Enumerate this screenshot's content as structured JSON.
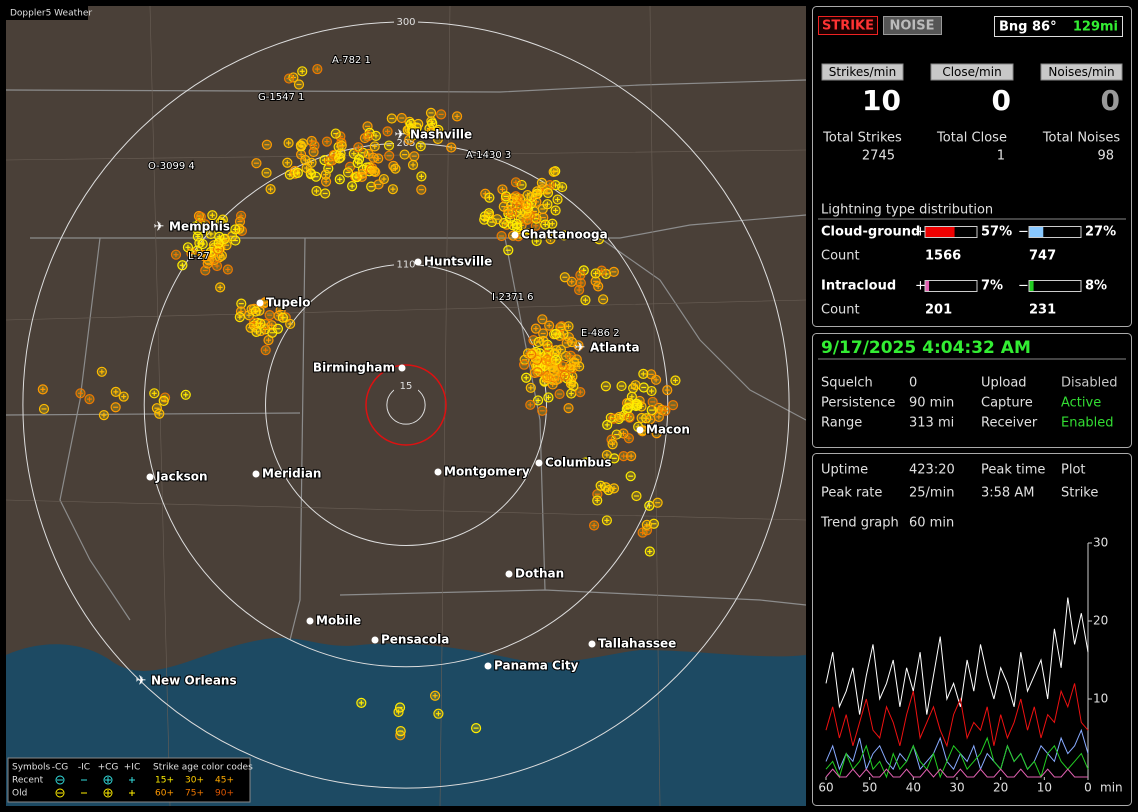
{
  "app_title": "Doppler5 Weather",
  "map": {
    "rings": [
      15,
      110,
      205,
      300
    ],
    "cities": [
      "Nashville",
      "Memphis",
      "Chattanooga",
      "Huntsville",
      "Tupelo",
      "Birmingham",
      "Atlanta",
      "Macon",
      "Jackson",
      "Meridian",
      "Montgomery",
      "Columbus",
      "Dothan",
      "Mobile",
      "Pensacola",
      "Panama City",
      "Tallahassee",
      "New Orleans"
    ],
    "cell_labels": [
      "A-782 1",
      "G-1547 1",
      "O-3099 4",
      "L-27",
      "A-1430 3",
      "I-2371 6",
      "E-486 2"
    ],
    "legend": {
      "symbols_label": "Symbols",
      "columns": [
        "-CG",
        "-IC",
        "+CG",
        "+IC"
      ],
      "age_title": "Strike age color codes",
      "rows": [
        {
          "name": "Recent",
          "ages": [
            "15+",
            "30+",
            "45+"
          ]
        },
        {
          "name": "Old",
          "ages": [
            "60+",
            "75+",
            "90+"
          ]
        }
      ]
    }
  },
  "status": {
    "buttons": [
      "STRIKE",
      "NOISE"
    ],
    "bearing": "Bng 86°",
    "distance": "129mi"
  },
  "rates": [
    {
      "label": "Strikes/min",
      "value": 10,
      "total_label": "Total Strikes",
      "total": 2745
    },
    {
      "label": "Close/min",
      "value": 0,
      "total_label": "Total Close",
      "total": 1
    },
    {
      "label": "Noises/min",
      "value": 0,
      "total_label": "Total Noises",
      "total": 98
    }
  ],
  "distribution": {
    "title": "Lightning type distribution",
    "count_label": "Count",
    "positive_sign": "+",
    "negative_sign": "−",
    "types": [
      {
        "name": "Cloud-ground",
        "positive": {
          "value": 57,
          "label": "57%"
        },
        "negative": {
          "value": 27,
          "label": "27%"
        },
        "positive_count": 1566,
        "negative_count": 747,
        "positive_color": "#ee0000",
        "negative_color": "#88c8ff"
      },
      {
        "name": "Intracloud",
        "positive": {
          "value": 7,
          "label": "7%"
        },
        "negative": {
          "value": 8,
          "label": "8%"
        },
        "positive_count": 201,
        "negative_count": 231,
        "positive_color": "#e060b0",
        "negative_color": "#22cc22"
      }
    ]
  },
  "clock": "9/17/2025 4:04:32 AM",
  "settings": [
    {
      "label": "Squelch",
      "value": 0,
      "label2": "Upload",
      "value2": "Disabled",
      "color2": "#c8c8c8"
    },
    {
      "label": "Persistence",
      "value": "90 min",
      "label2": "Capture",
      "value2": "Active",
      "color2": "#33dd33"
    },
    {
      "label": "Range",
      "value": "313 mi",
      "label2": "Receiver",
      "value2": "Enabled",
      "color2": "#33dd33"
    }
  ],
  "stats": [
    {
      "label": "Uptime",
      "value": "423:20"
    },
    {
      "label": "Peak rate",
      "value": "25/min"
    },
    {
      "label": "Peak time",
      "value": "3:58 AM"
    },
    {
      "label": "Plot",
      "value": "Strike"
    },
    {
      "label": "Trend graph",
      "value": "60 min"
    }
  ],
  "trend_graph": {
    "ylim": [
      0,
      30
    ],
    "yticks": [
      10,
      20,
      30
    ],
    "xlim": [
      60,
      0
    ],
    "xticks": [
      60,
      50,
      40,
      30,
      20,
      10,
      0
    ],
    "x_unit": "min",
    "series": [
      {
        "color": "#ffffff",
        "values": [
          12,
          16,
          9,
          11,
          14,
          8,
          13,
          17,
          10,
          12,
          15,
          9,
          14,
          11,
          16,
          8,
          13,
          18,
          10,
          12,
          9,
          15,
          11,
          17,
          13,
          10,
          14,
          12,
          9,
          16,
          11,
          13,
          15,
          10,
          19,
          14,
          23,
          17,
          21,
          16
        ]
      },
      {
        "color": "#ee1111",
        "values": [
          6,
          9,
          5,
          8,
          4,
          7,
          10,
          6,
          5,
          9,
          7,
          4,
          8,
          11,
          5,
          7,
          9,
          6,
          4,
          8,
          10,
          5,
          7,
          6,
          9,
          4,
          8,
          5,
          7,
          10,
          6,
          9,
          5,
          8,
          7,
          11,
          9,
          12,
          7,
          6
        ]
      },
      {
        "color": "#88aaff",
        "values": [
          2,
          4,
          1,
          3,
          2,
          5,
          1,
          3,
          4,
          2,
          1,
          3,
          2,
          4,
          1,
          2,
          3,
          5,
          2,
          1,
          3,
          2,
          4,
          1,
          3,
          2,
          1,
          4,
          2,
          3,
          1,
          2,
          4,
          3,
          2,
          5,
          3,
          4,
          6,
          3
        ]
      },
      {
        "color": "#22cc22",
        "values": [
          1,
          2,
          0,
          3,
          1,
          2,
          4,
          1,
          2,
          0,
          3,
          1,
          2,
          4,
          2,
          1,
          3,
          0,
          2,
          4,
          3,
          1,
          2,
          3,
          5,
          2,
          1,
          4,
          2,
          3,
          1,
          2,
          0,
          3,
          4,
          2,
          1,
          2,
          3,
          1
        ]
      },
      {
        "color": "#e060b0",
        "values": [
          0,
          1,
          0,
          0,
          1,
          0,
          1,
          0,
          0,
          1,
          0,
          0,
          1,
          0,
          0,
          1,
          0,
          1,
          0,
          0,
          1,
          0,
          0,
          1,
          0,
          0,
          1,
          0,
          0,
          1,
          0,
          0,
          0,
          1,
          0,
          0,
          1,
          0,
          0,
          0
        ]
      }
    ]
  }
}
